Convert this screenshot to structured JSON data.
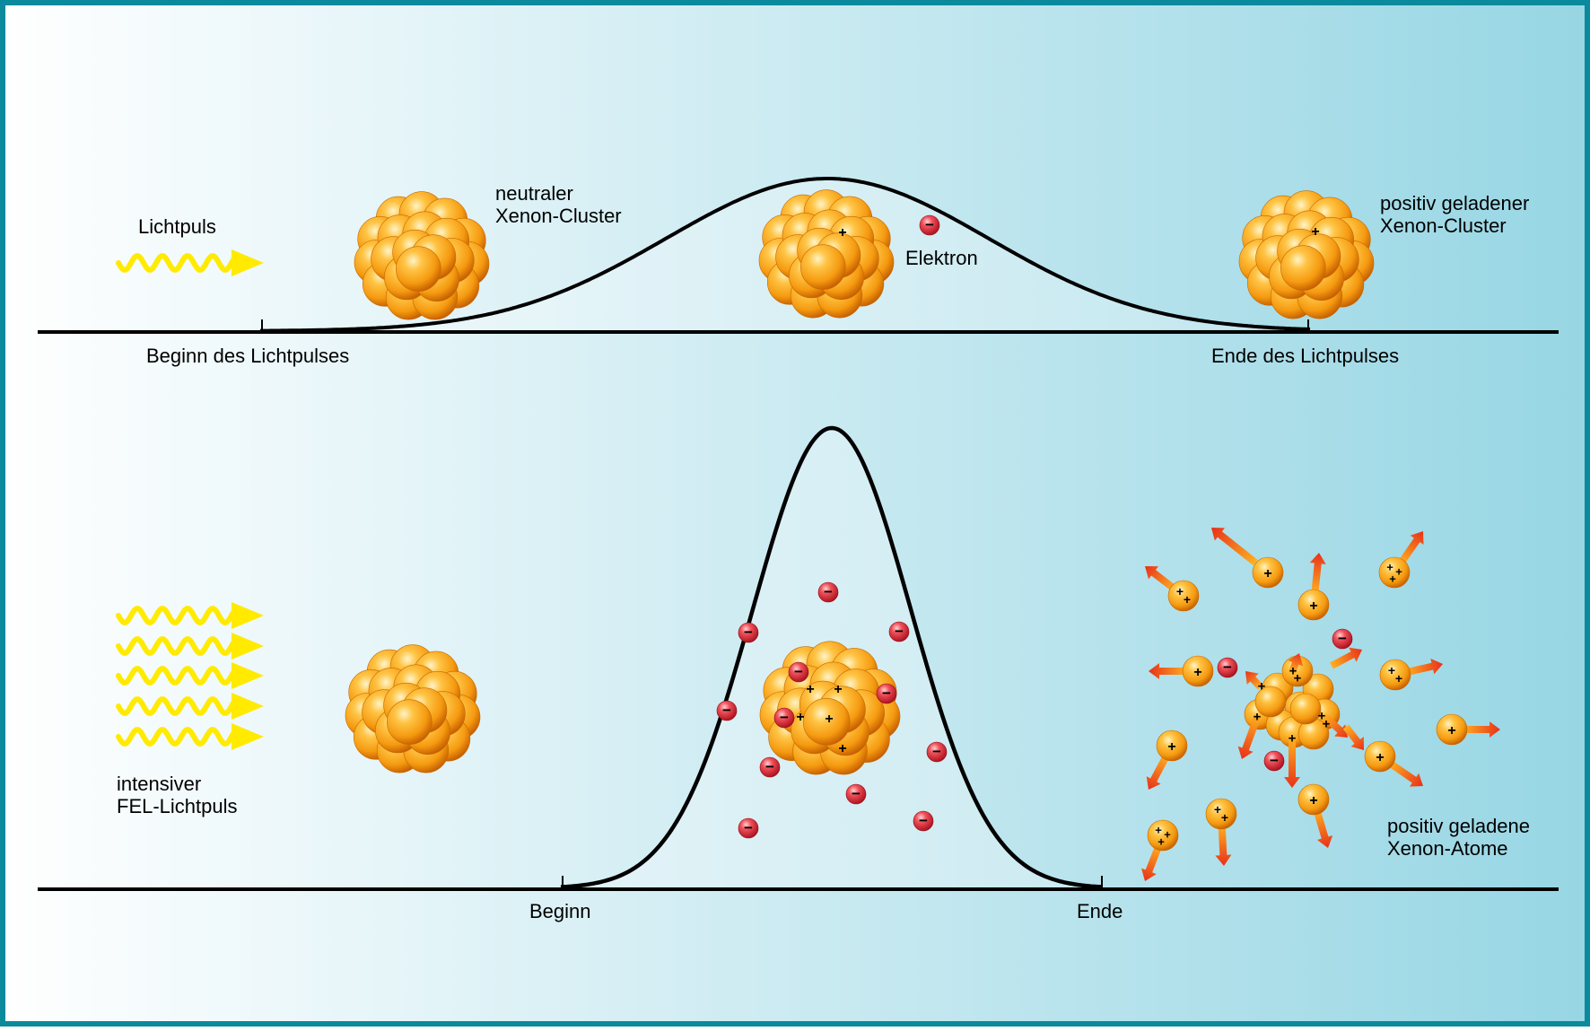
{
  "colors": {
    "border": "#0a8a9c",
    "background_left": "#ffffff",
    "background_right": "#97d6e4",
    "curve": "#000000",
    "light_wave": "#ffea00",
    "atom": "#f59a10",
    "electron": "#d8202c",
    "explosion_arrow": "#f04a10"
  },
  "top_panel": {
    "light_label": "Lichtpuls",
    "neutral_cluster_label_1": "neutraler",
    "neutral_cluster_label_2": "Xenon-Cluster",
    "electron_label": "Elektron",
    "positive_cluster_label_1": "positiv geladener",
    "positive_cluster_label_2": "Xenon-Cluster",
    "start_label": "Beginn des Lichtpulses",
    "end_label": "Ende des Lichtpulses"
  },
  "bottom_panel": {
    "light_label_1": "intensiver",
    "light_label_2": "FEL-Lichtpuls",
    "start_label": "Beginn",
    "end_label": "Ende",
    "atoms_label_1": "positiv geladene",
    "atoms_label_2": "Xenon-Atome"
  },
  "glyphs": {
    "plus": "+",
    "minus": "−"
  }
}
